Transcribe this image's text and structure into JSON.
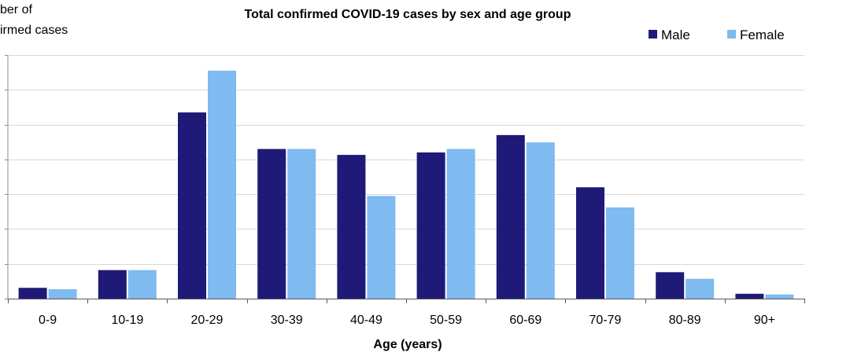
{
  "chart_data": {
    "type": "bar",
    "title": "Total confirmed COVID-19 cases by sex and age group",
    "ylabel_line1": "ber of",
    "ylabel_line2": "irmed cases",
    "xlabel": "Age (years)",
    "categories": [
      "0-9",
      "10-19",
      "20-29",
      "30-39",
      "40-49",
      "50-59",
      "60-69",
      "70-79",
      "80-89",
      "90+"
    ],
    "series": [
      {
        "name": "Male",
        "color": "#1f1a77",
        "values": [
          0.31,
          0.82,
          5.35,
          4.3,
          4.13,
          4.2,
          4.7,
          3.2,
          0.76,
          0.14
        ]
      },
      {
        "name": "Female",
        "color": "#7fbaf0",
        "values": [
          0.27,
          0.82,
          6.55,
          4.3,
          2.95,
          4.3,
          4.49,
          2.62,
          0.57,
          0.12
        ]
      }
    ],
    "ylim": [
      0,
      7
    ],
    "ytick_step": 1,
    "grid": true,
    "legend_position": "top-right"
  }
}
